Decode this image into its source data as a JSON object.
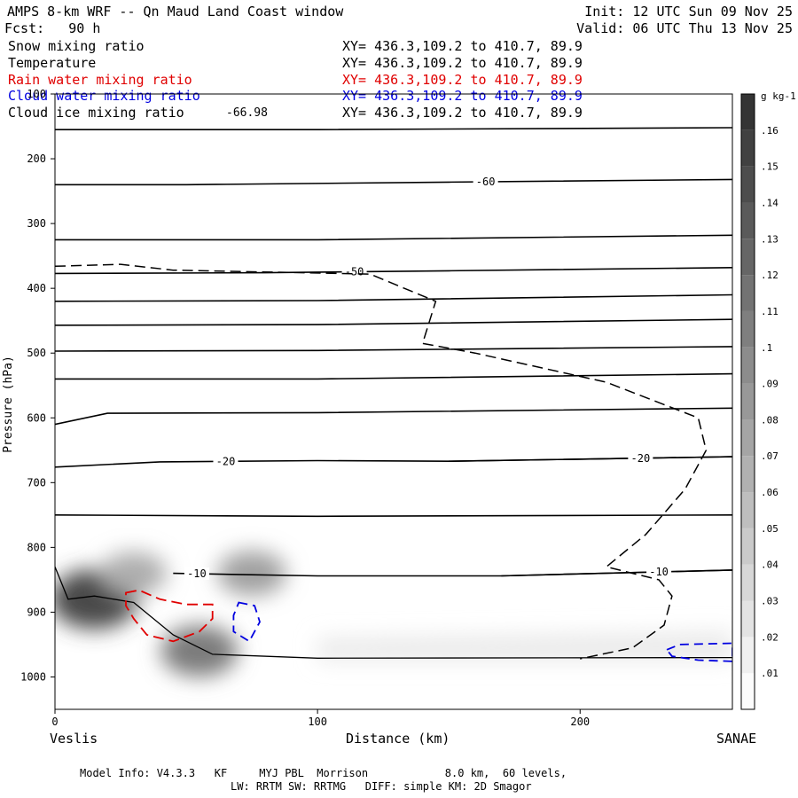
{
  "header": {
    "title": "AMPS 8-km WRF -- Qn Maud Land Coast window",
    "init": "Init: 12 UTC Sun 09 Nov 25",
    "fcst": "Fcst:   90 h",
    "valid": "Valid: 06 UTC Thu 13 Nov 25"
  },
  "legend": [
    {
      "label": "Snow mixing ratio",
      "extra": "",
      "xy": "XY= 436.3,109.2 to 410.7, 89.9",
      "color": "#000000"
    },
    {
      "label": "Temperature",
      "extra": "",
      "xy": "XY= 436.3,109.2 to 410.7, 89.9",
      "color": "#000000"
    },
    {
      "label": "Rain water mixing ratio",
      "extra": "",
      "xy": "XY= 436.3,109.2 to 410.7, 89.9",
      "color": "#e00000"
    },
    {
      "label": "Cloud water mixing ratio",
      "extra": "",
      "xy": "XY= 436.3,109.2 to 410.7, 89.9",
      "color": "#0000e0"
    },
    {
      "label": "Cloud ice mixing ratio",
      "extra": "-66.98",
      "xy": "XY= 436.3,109.2 to 410.7, 89.9",
      "color": "#000000"
    }
  ],
  "footer": {
    "line1": "Model Info: V4.3.3   KF     MYJ PBL  Morrison            8.0 km,  60 levels,",
    "line2": "LW: RRTM SW: RRTMG   DIFF: simple KM: 2D Smagor"
  },
  "chart_data": {
    "type": "cross-section",
    "title": "AMPS 8-km WRF -- Qn Maud Land Coast window",
    "xlabel": "Distance (km)",
    "ylabel": "Pressure (hPa)",
    "xlim": [
      0,
      258
    ],
    "ylim": [
      1050,
      100
    ],
    "x_ticks": [
      0,
      100,
      200
    ],
    "y_ticks": [
      100,
      200,
      300,
      400,
      500,
      600,
      700,
      800,
      900,
      1000
    ],
    "x_endpoints": {
      "left": "Veslis",
      "right": "SANAE"
    },
    "temperature_isotherms": [
      {
        "label": "-60",
        "label_x": 164,
        "points": [
          [
            0,
            240
          ],
          [
            50,
            240
          ],
          [
            150,
            236
          ],
          [
            258,
            232
          ]
        ]
      },
      {
        "label": "-50",
        "label_x": 114,
        "points": [
          [
            0,
            377
          ],
          [
            80,
            376
          ],
          [
            150,
            373
          ],
          [
            258,
            368
          ]
        ]
      },
      {
        "label": "-20",
        "label_x": 65,
        "points": [
          [
            0,
            676
          ],
          [
            40,
            668
          ],
          [
            100,
            666
          ],
          [
            150,
            667
          ],
          [
            258,
            660
          ]
        ]
      },
      {
        "label": "-20",
        "label_x": 223,
        "points": [
          [
            150,
            667
          ],
          [
            258,
            660
          ]
        ]
      },
      {
        "label": "-10",
        "label_x": 54,
        "points": [
          [
            45,
            840
          ],
          [
            100,
            844
          ],
          [
            170,
            844
          ],
          [
            258,
            835
          ]
        ]
      },
      {
        "label": "-10",
        "label_x": 230,
        "points": [
          [
            170,
            844
          ],
          [
            258,
            835
          ]
        ]
      }
    ],
    "extra_isotherms": [
      [
        [
          0,
          155
        ],
        [
          100,
          155
        ],
        [
          258,
          152
        ]
      ],
      [
        [
          0,
          325
        ],
        [
          100,
          325
        ],
        [
          258,
          318
        ]
      ],
      [
        [
          0,
          420
        ],
        [
          100,
          419
        ],
        [
          258,
          410
        ]
      ],
      [
        [
          0,
          457
        ],
        [
          100,
          456
        ],
        [
          258,
          448
        ]
      ],
      [
        [
          0,
          497
        ],
        [
          100,
          496
        ],
        [
          258,
          490
        ]
      ],
      [
        [
          0,
          540
        ],
        [
          100,
          540
        ],
        [
          258,
          532
        ]
      ],
      [
        [
          0,
          610
        ],
        [
          20,
          593
        ],
        [
          100,
          592
        ],
        [
          258,
          585
        ]
      ],
      [
        [
          0,
          750
        ],
        [
          100,
          752
        ],
        [
          258,
          750
        ]
      ]
    ],
    "snow_colorbar": {
      "unit": "g kg-1",
      "levels": [
        ".01",
        ".02",
        ".03",
        ".04",
        ".05",
        ".06",
        ".07",
        ".08",
        ".09",
        ".1",
        ".11",
        ".12",
        ".13",
        ".14",
        ".15",
        ".16"
      ]
    },
    "snow_maxima": [
      {
        "x": 15,
        "p": 880,
        "value": 0.13
      },
      {
        "x": 30,
        "p": 840,
        "value": 0.05
      },
      {
        "x": 75,
        "p": 840,
        "value": 0.06
      },
      {
        "x": 55,
        "p": 960,
        "value": 0.09
      }
    ],
    "rain_contour": [
      [
        27,
        870
      ],
      [
        32,
        866
      ],
      [
        40,
        880
      ],
      [
        50,
        888
      ],
      [
        60,
        888
      ],
      [
        60,
        910
      ],
      [
        55,
        930
      ],
      [
        45,
        945
      ],
      [
        35,
        935
      ],
      [
        30,
        910
      ],
      [
        27,
        890
      ]
    ],
    "cloud_water_contours": [
      [
        [
          70,
          885
        ],
        [
          76,
          890
        ],
        [
          78,
          915
        ],
        [
          74,
          945
        ],
        [
          68,
          930
        ],
        [
          68,
          905
        ]
      ],
      [
        [
          233,
          958
        ],
        [
          238,
          950
        ],
        [
          258,
          948
        ],
        [
          258,
          976
        ],
        [
          245,
          974
        ],
        [
          235,
          968
        ]
      ]
    ],
    "cloud_ice_contour": [
      [
        0,
        366
      ],
      [
        25,
        363
      ],
      [
        45,
        372
      ],
      [
        120,
        378
      ],
      [
        145,
        420
      ],
      [
        140,
        485
      ],
      [
        160,
        500
      ],
      [
        210,
        545
      ],
      [
        245,
        600
      ],
      [
        248,
        650
      ],
      [
        240,
        710
      ],
      [
        225,
        780
      ],
      [
        210,
        830
      ],
      [
        230,
        850
      ],
      [
        235,
        875
      ],
      [
        232,
        920
      ],
      [
        220,
        955
      ],
      [
        200,
        972
      ]
    ],
    "terrain": [
      [
        0,
        830
      ],
      [
        5,
        880
      ],
      [
        15,
        875
      ],
      [
        30,
        885
      ],
      [
        45,
        935
      ],
      [
        60,
        965
      ],
      [
        100,
        971
      ],
      [
        258,
        970
      ]
    ]
  }
}
